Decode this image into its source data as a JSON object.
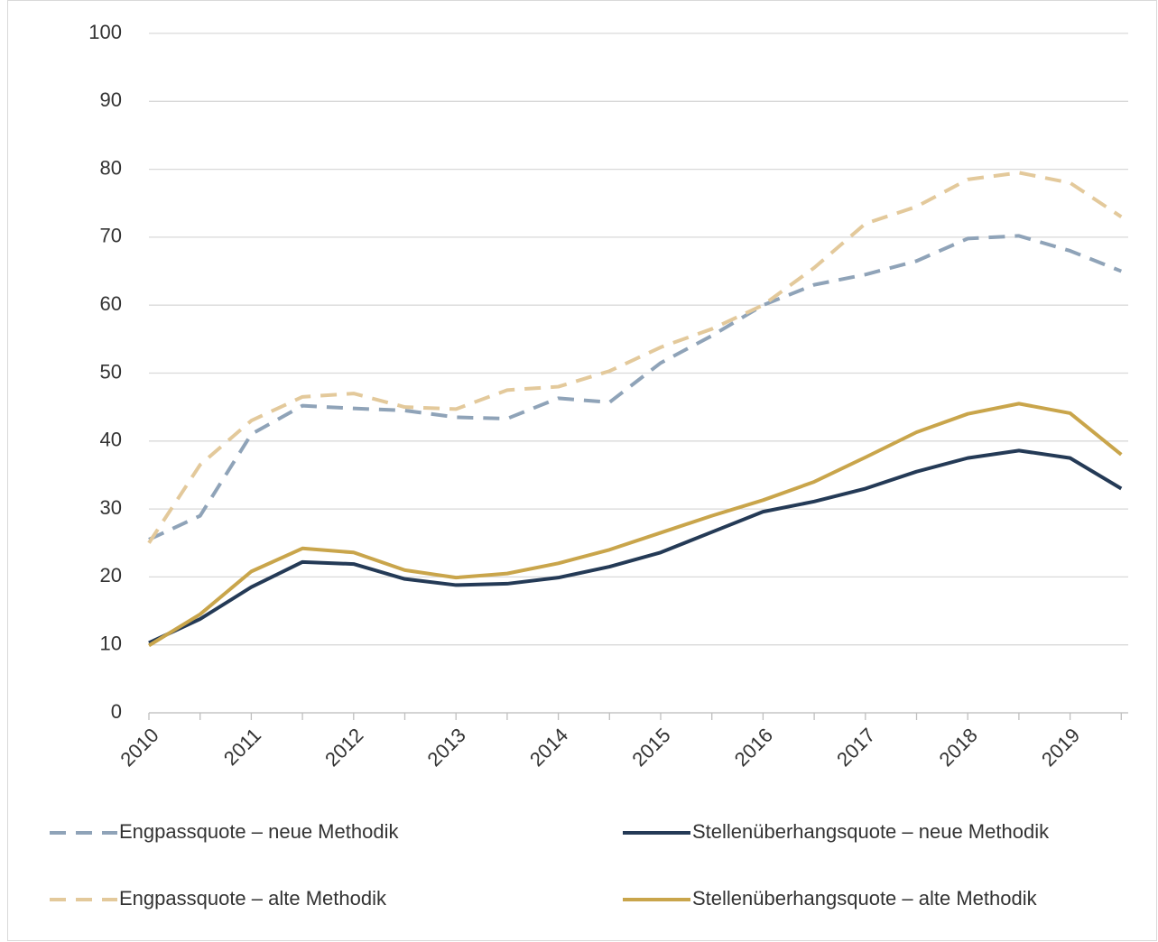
{
  "chart_data": {
    "type": "line",
    "categories": [
      "2010",
      null,
      "2011",
      null,
      "2012",
      null,
      "2013",
      null,
      "2014",
      null,
      "2015",
      null,
      "2016",
      null,
      "2017",
      null,
      "2018",
      null,
      "2019",
      null
    ],
    "ylim": [
      0,
      100
    ],
    "yticks": [
      0,
      10,
      20,
      30,
      40,
      50,
      60,
      70,
      80,
      90,
      100
    ],
    "grid": true,
    "series": [
      {
        "name": "Engpassquote – neue Methodik",
        "color": "#8fa3b8",
        "dashed": true,
        "values": [
          25.5,
          29,
          41,
          45.2,
          44.8,
          44.5,
          43.5,
          43.3,
          46.3,
          45.7,
          51.5,
          55.5,
          60,
          63,
          64.5,
          66.5,
          69.8,
          70.2,
          68,
          65
        ]
      },
      {
        "name": "Stellenüberhangsquote – neue Methodik",
        "color": "#243a56",
        "dashed": false,
        "values": [
          10.3,
          13.8,
          18.5,
          22.2,
          21.9,
          19.7,
          18.8,
          19,
          19.9,
          21.5,
          23.6,
          26.6,
          29.6,
          31.1,
          33,
          35.5,
          37.5,
          38.6,
          37.5,
          33
        ]
      },
      {
        "name": "Engpassquote – alte Methodik",
        "color": "#e3c99b",
        "dashed": true,
        "values": [
          25,
          36.5,
          43,
          46.5,
          47,
          45,
          44.7,
          47.5,
          48,
          50.3,
          53.8,
          56.5,
          60,
          65.5,
          72,
          74.5,
          78.5,
          79.5,
          78,
          73
        ]
      },
      {
        "name": "Stellenüberhangsquote – alte Methodik",
        "color": "#c9a54b",
        "dashed": false,
        "values": [
          9.9,
          14.5,
          20.8,
          24.2,
          23.6,
          21,
          19.9,
          20.5,
          22,
          24,
          26.5,
          29,
          31.3,
          34,
          37.6,
          41.3,
          44,
          45.5,
          44.1,
          38
        ]
      }
    ]
  }
}
